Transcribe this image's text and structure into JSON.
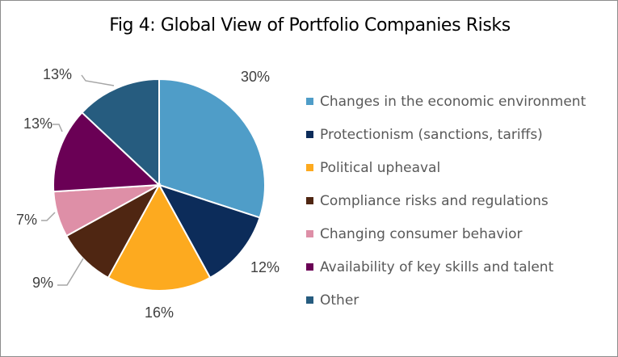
{
  "chart_data": {
    "type": "pie",
    "title": "Fig 4: Global View of Portfolio Companies Risks",
    "slices": [
      {
        "label": "Changes in the economic environment",
        "value": 30,
        "value_label": "30%",
        "color": "#4f9dc8"
      },
      {
        "label": "Protectionism (sanctions, tariffs)",
        "value": 12,
        "value_label": "12%",
        "color": "#0c2c5a"
      },
      {
        "label": "Political upheaval",
        "value": 16,
        "value_label": "16%",
        "color": "#fdaa1f"
      },
      {
        "label": "Compliance risks and regulations",
        "value": 9,
        "value_label": "9%",
        "color": "#4f2612"
      },
      {
        "label": "Changing consumer behavior",
        "value": 7,
        "value_label": "7%",
        "color": "#de8fa7"
      },
      {
        "label": "Availability of key skills and talent",
        "value": 13,
        "value_label": "13%",
        "color": "#6a0055"
      },
      {
        "label": "Other",
        "value": 13,
        "value_label": "13%",
        "color": "#265c7f"
      }
    ],
    "legend_position": "right"
  }
}
